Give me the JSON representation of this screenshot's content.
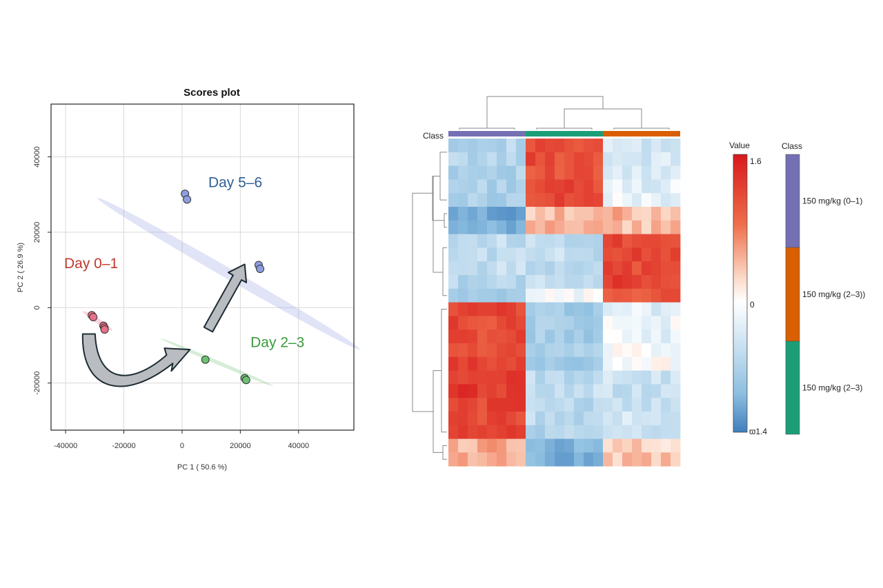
{
  "scores_plot": {
    "title": "Scores plot",
    "xlabel": "PC 1 ( 50.6 %)",
    "ylabel": "PC 2 ( 26.9 %)"
  },
  "heatmap": {
    "class_label": "Class",
    "value_legend_title": "Value",
    "value_max_label": "1.6",
    "value_mid_label": "0",
    "value_min_label": "ϖ1.4",
    "class_legend_title": "Class"
  },
  "chart_data": [
    {
      "type": "scatter",
      "title": "Scores plot",
      "xlabel": "PC 1 ( 50.6 %)",
      "ylabel": "PC 2 ( 26.9 %)",
      "xlim": [
        -45000,
        59000
      ],
      "ylim": [
        -32500,
        54000
      ],
      "xticks": [
        -40000,
        -20000,
        0,
        20000,
        40000
      ],
      "yticks": [
        -20000,
        0,
        20000,
        40000
      ],
      "tick_labels_x": [
        "-40000",
        "-20000",
        "0",
        "20000",
        "40000"
      ],
      "tick_labels_y": [
        "-20000",
        "0",
        "20000",
        "40000"
      ],
      "grid": true,
      "series": [
        {
          "name": "Day 0–1",
          "label": "Day 0–1",
          "color": "#e8708a",
          "text_color": "#c0392b",
          "points": [
            [
              -31000,
              -2000
            ],
            [
              -30500,
              -2500
            ],
            [
              -27000,
              -4800
            ],
            [
              -26700,
              -5300
            ],
            [
              -26600,
              -5800
            ]
          ],
          "label_at": [
            -40500,
            10500
          ],
          "ellipse": {
            "center": [
              -29000,
              -3500
            ],
            "half_length": 6000,
            "half_width": 700,
            "angle_deg": -33
          }
        },
        {
          "name": "Day 2–3",
          "label": "Day 2–3",
          "color": "#6cc070",
          "text_color": "#3a9a3a",
          "points": [
            [
              8000,
              -13800
            ],
            [
              21500,
              -18700
            ],
            [
              22000,
              -19200
            ]
          ],
          "label_at": [
            23500,
            -10500
          ],
          "ellipse": {
            "center": [
              12000,
              -14500
            ],
            "half_length": 21000,
            "half_width": 500,
            "angle_deg": -23
          }
        },
        {
          "name": "Day 5–6",
          "label": "Day 5–6",
          "color": "#8e9de0",
          "text_color": "#2e5f96",
          "points": [
            [
              1000,
              30200
            ],
            [
              1700,
              28700
            ],
            [
              26300,
              11300
            ],
            [
              26800,
              10300
            ]
          ],
          "label_at": [
            9000,
            32000
          ],
          "ellipse": {
            "center": [
              16000,
              9000
            ],
            "half_length": 52000,
            "half_width": 1400,
            "angle_deg": -30
          }
        }
      ],
      "arrows": [
        {
          "kind": "curved",
          "from": [
            -32000,
            -7000
          ],
          "to": [
            2000,
            -11500
          ]
        },
        {
          "kind": "straight",
          "from": [
            9000,
            -5800
          ],
          "to": [
            21500,
            11500
          ]
        }
      ]
    },
    {
      "type": "heatmap",
      "value_range": [
        -1.4,
        1.6
      ],
      "value_legend_labels": [
        "1.6",
        "0",
        "ϖ1.4"
      ],
      "class_legend_title": "Class",
      "column_groups": [
        {
          "name": "150 mg/kg (0–1)",
          "color": "#7570b3",
          "count": 8
        },
        {
          "name": "150 mg/kg (2–3)",
          "color": "#1b9e77",
          "count": 8
        },
        {
          "name": "150 mg/kg (2–3))",
          "color": "#d95f02",
          "count": 8
        }
      ],
      "class_legend": [
        {
          "label": "150 mg/kg (0–1)",
          "color": "#7570b3"
        },
        {
          "label": "150 mg/kg (2–3))",
          "color": "#d95f02"
        },
        {
          "label": "150 mg/kg (2–3)",
          "color": "#1b9e77"
        }
      ],
      "row_block_values": [
        [
          -0.55,
          1.1,
          -0.35
        ],
        [
          -0.55,
          1.15,
          -0.3
        ],
        [
          -0.6,
          1.05,
          -0.3
        ],
        [
          -0.6,
          1.15,
          -0.2
        ],
        [
          -0.65,
          1.2,
          -0.15
        ],
        [
          -1.1,
          0.45,
          0.5
        ],
        [
          -1.05,
          0.55,
          0.45
        ],
        [
          -0.45,
          -0.45,
          1.2
        ],
        [
          -0.45,
          -0.45,
          1.2
        ],
        [
          -0.45,
          -0.45,
          1.15
        ],
        [
          -0.55,
          -0.4,
          1.25
        ],
        [
          -0.8,
          -0.05,
          1.05
        ],
        [
          1.2,
          -0.7,
          -0.2
        ],
        [
          1.15,
          -0.65,
          -0.1
        ],
        [
          1.15,
          -0.7,
          -0.15
        ],
        [
          1.1,
          -0.7,
          -0.05
        ],
        [
          1.2,
          -0.75,
          0.0
        ],
        [
          1.25,
          -0.5,
          -0.35
        ],
        [
          1.3,
          -0.45,
          -0.4
        ],
        [
          1.2,
          -0.5,
          -0.4
        ],
        [
          1.15,
          -0.5,
          -0.35
        ],
        [
          1.2,
          -0.55,
          -0.45
        ],
        [
          0.55,
          -0.95,
          0.35
        ],
        [
          0.6,
          -1.0,
          0.4
        ]
      ]
    }
  ]
}
